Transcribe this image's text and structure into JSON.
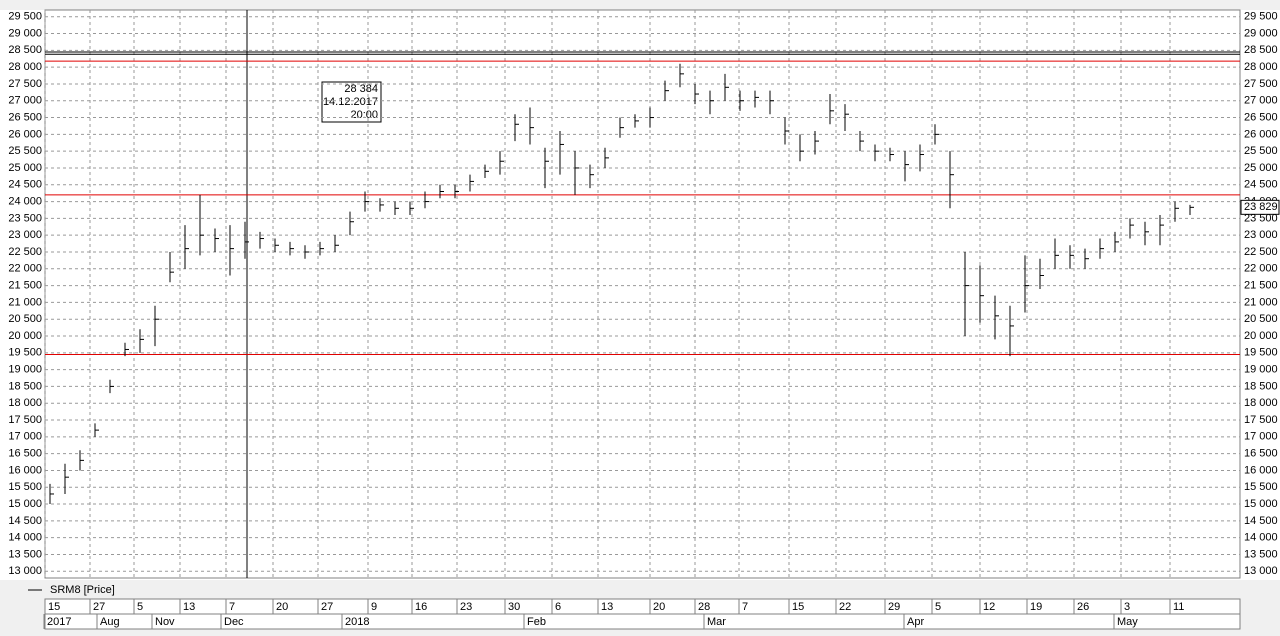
{
  "chart_data": {
    "type": "ohlc",
    "legend": "SRM8 [Price]",
    "ylim": [
      12800,
      29700
    ],
    "yticks": [
      {
        "value": 13000,
        "label": "13 000"
      },
      {
        "value": 13500,
        "label": "13 500"
      },
      {
        "value": 14000,
        "label": "14 000"
      },
      {
        "value": 14500,
        "label": "14 500"
      },
      {
        "value": 15000,
        "label": "15 000"
      },
      {
        "value": 15500,
        "label": "15 500"
      },
      {
        "value": 16000,
        "label": "16 000"
      },
      {
        "value": 16500,
        "label": "16 500"
      },
      {
        "value": 17000,
        "label": "17 000"
      },
      {
        "value": 17500,
        "label": "17 500"
      },
      {
        "value": 18000,
        "label": "18 000"
      },
      {
        "value": 18500,
        "label": "18 500"
      },
      {
        "value": 19000,
        "label": "19 000"
      },
      {
        "value": 19500,
        "label": "19 500"
      },
      {
        "value": 20000,
        "label": "20 000"
      },
      {
        "value": 20500,
        "label": "20 500"
      },
      {
        "value": 21000,
        "label": "21 000"
      },
      {
        "value": 21500,
        "label": "21 500"
      },
      {
        "value": 22000,
        "label": "22 000"
      },
      {
        "value": 22500,
        "label": "22 500"
      },
      {
        "value": 23000,
        "label": "23 000"
      },
      {
        "value": 23500,
        "label": "23 500"
      },
      {
        "value": 24000,
        "label": "24 000"
      },
      {
        "value": 24500,
        "label": "24 500"
      },
      {
        "value": 25000,
        "label": "25 000"
      },
      {
        "value": 25500,
        "label": "25 500"
      },
      {
        "value": 26000,
        "label": "26 000"
      },
      {
        "value": 26500,
        "label": "26 500"
      },
      {
        "value": 27000,
        "label": "27 000"
      },
      {
        "value": 27500,
        "label": "27 500"
      },
      {
        "value": 28000,
        "label": "28 000"
      },
      {
        "value": 28500,
        "label": "28 500"
      },
      {
        "value": 29000,
        "label": "29 000"
      },
      {
        "value": 29500,
        "label": "29 500"
      }
    ],
    "grid": true,
    "days": [
      "15",
      "27",
      "5",
      "13",
      "7",
      "20",
      "27",
      "9",
      "16",
      "23",
      "30",
      "6",
      "13",
      "20",
      "28",
      "7",
      "15",
      "22",
      "29",
      "5",
      "12",
      "19",
      "26",
      "3",
      "11"
    ],
    "months": [
      "2017",
      "Aug",
      "Nov",
      "Dec",
      "2018",
      "Feb",
      "Mar",
      "Apr",
      "May"
    ],
    "hlines": [
      {
        "value": 28450,
        "color": "#000000"
      },
      {
        "value": 28180,
        "color": "#e00000"
      },
      {
        "value": 24200,
        "color": "#e00000"
      },
      {
        "value": 19450,
        "color": "#e00000"
      }
    ],
    "crosshair": {
      "value": 28384,
      "label": "28 384",
      "date": "14.12.2017",
      "time": "20:00"
    },
    "last_price": {
      "value": 23829,
      "label": "23 829"
    },
    "series": [
      {
        "name": "SRM8 [Price]",
        "color": "#000000",
        "values": [
          15300,
          15800,
          16300,
          17200,
          18500,
          19600,
          19900,
          20500,
          21900,
          22600,
          23000,
          22900,
          22600,
          22800,
          22900,
          22700,
          22600,
          22500,
          22600,
          22700,
          23400,
          24000,
          23900,
          23800,
          23800,
          24000,
          24300,
          24300,
          24600,
          24900,
          25200,
          26300,
          26200,
          25200,
          25700,
          25000,
          24800,
          25300,
          26200,
          26400,
          26500,
          27300,
          27800,
          27200,
          27000,
          27400,
          27000,
          27100,
          27000,
          26100,
          25500,
          25800,
          26700,
          26600,
          25800,
          25500,
          25400,
          25100,
          25400,
          26000,
          24800,
          21500,
          21200,
          20600,
          20300,
          21500,
          21800,
          22400,
          22400,
          22300,
          22600,
          22800,
          23300,
          23100,
          23300,
          23800,
          23829
        ],
        "high": [
          15600,
          16200,
          16600,
          17400,
          18700,
          19800,
          20200,
          20900,
          22500,
          23300,
          24200,
          23200,
          23300,
          23400,
          23100,
          22900,
          22800,
          22700,
          22800,
          23000,
          23700,
          24300,
          24100,
          24000,
          24000,
          24300,
          24500,
          24500,
          24800,
          25100,
          25500,
          26600,
          26800,
          25600,
          26100,
          25500,
          25100,
          25600,
          26500,
          26600,
          26800,
          27600,
          28100,
          27500,
          27300,
          27800,
          27300,
          27300,
          27300,
          26500,
          26000,
          26100,
          27200,
          26900,
          26100,
          25700,
          25600,
          25500,
          25700,
          26300,
          25500,
          22500,
          22100,
          21200,
          20900,
          22400,
          22300,
          22900,
          22700,
          22600,
          22900,
          23100,
          23500,
          23400,
          23600,
          24000,
          23900
        ],
        "low": [
          15000,
          15300,
          16000,
          17000,
          18300,
          19400,
          19500,
          19700,
          21600,
          22000,
          22400,
          22500,
          21800,
          22300,
          22600,
          22500,
          22400,
          22300,
          22400,
          22500,
          23000,
          23700,
          23700,
          23600,
          23600,
          23800,
          24100,
          24100,
          24300,
          24700,
          24800,
          25800,
          25700,
          24400,
          24800,
          24200,
          24400,
          25000,
          25900,
          26200,
          26200,
          27000,
          27400,
          26900,
          26600,
          27000,
          26700,
          26800,
          26600,
          25700,
          25200,
          25400,
          26300,
          26100,
          25500,
          25200,
          25200,
          24600,
          24900,
          25700,
          23800,
          20000,
          20400,
          19900,
          19400,
          20700,
          21400,
          22000,
          22000,
          22000,
          22300,
          22500,
          22900,
          22700,
          22700,
          23400,
          23600
        ]
      }
    ]
  }
}
